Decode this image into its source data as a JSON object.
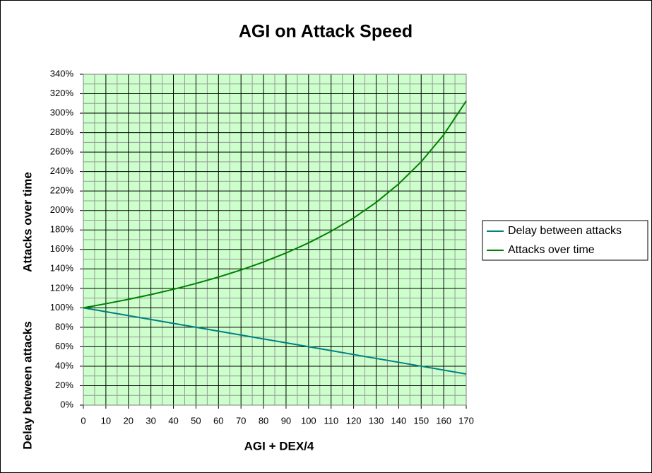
{
  "chart_data": {
    "type": "line",
    "title": "AGI on Attack Speed",
    "x_label": "AGI + DEX/4",
    "y_labels": [
      "Attacks over time",
      "Delay between attacks"
    ],
    "x": [
      0,
      10,
      20,
      30,
      40,
      50,
      60,
      70,
      80,
      90,
      100,
      110,
      120,
      130,
      140,
      150,
      160,
      170
    ],
    "series": [
      {
        "name": "Delay between attacks",
        "color": "#008080",
        "values": [
          100,
          96,
          92,
          88,
          84,
          80,
          76,
          72,
          68,
          64,
          60,
          56,
          52,
          48,
          44,
          40,
          36,
          32
        ]
      },
      {
        "name": "Attacks over time",
        "color": "#008000",
        "values": [
          100,
          104.2,
          108.7,
          113.6,
          119.0,
          125,
          131.6,
          138.9,
          147.1,
          156.3,
          166.7,
          178.6,
          192.3,
          208.3,
          227.3,
          250,
          277.8,
          312.5
        ]
      }
    ],
    "xlim": [
      0,
      170
    ],
    "xticks": [
      0,
      10,
      20,
      30,
      40,
      50,
      60,
      70,
      80,
      90,
      100,
      110,
      120,
      130,
      140,
      150,
      160,
      170
    ],
    "ylim": [
      0,
      340
    ],
    "yticks": [
      {
        "value": 0,
        "label": "0%"
      },
      {
        "value": 20,
        "label": "20%"
      },
      {
        "value": 40,
        "label": "40%"
      },
      {
        "value": 60,
        "label": "60%"
      },
      {
        "value": 80,
        "label": "80%"
      },
      {
        "value": 100,
        "label": "100%"
      },
      {
        "value": 120,
        "label": "120%"
      },
      {
        "value": 140,
        "label": "140%"
      },
      {
        "value": 160,
        "label": "160%"
      },
      {
        "value": 180,
        "label": "180%"
      },
      {
        "value": 200,
        "label": "200%"
      },
      {
        "value": 220,
        "label": "220%"
      },
      {
        "value": 240,
        "label": "240%"
      },
      {
        "value": 260,
        "label": "260%"
      },
      {
        "value": 280,
        "label": "280%"
      },
      {
        "value": 300,
        "label": "300%"
      },
      {
        "value": 320,
        "label": "320%"
      },
      {
        "value": 340,
        "label": "340%"
      }
    ],
    "grid": true,
    "minor_grid": true,
    "plot_background": "#ccffcc",
    "legend": "right"
  }
}
